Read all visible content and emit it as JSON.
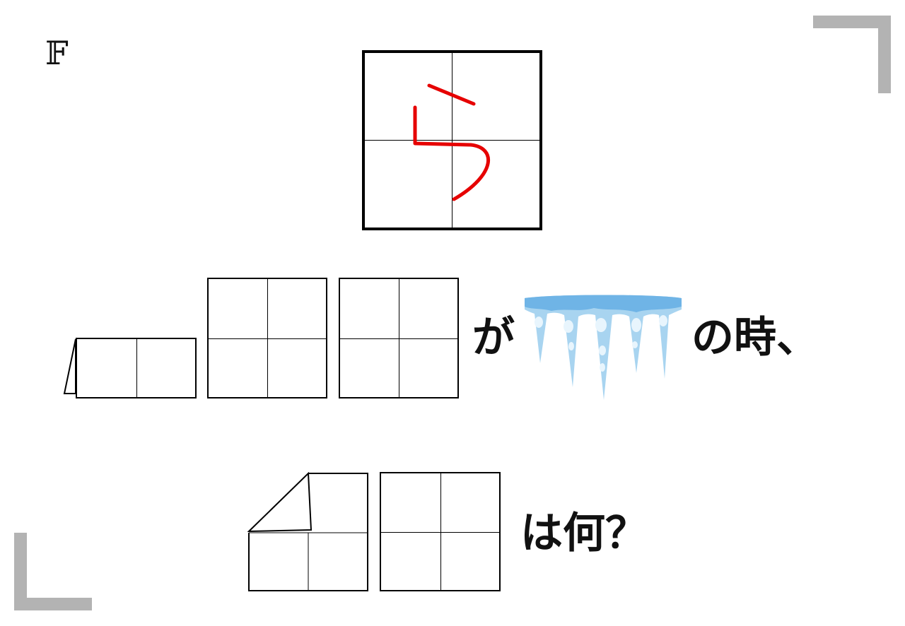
{
  "puzzle": {
    "label": "𝔽"
  },
  "question": {
    "line1_particle": "が",
    "line1_suffix": "の時、",
    "line2_suffix": "は何？"
  },
  "hint": {
    "stroke_color": "#e60000",
    "icon": "hiragana-ra-stroke-order"
  },
  "picture": {
    "icon": "icicles-icon",
    "light_color": "#a8d4f0",
    "dark_color": "#6fb4e6"
  },
  "colors": {
    "corner_bracket": "#b3b3b3"
  }
}
